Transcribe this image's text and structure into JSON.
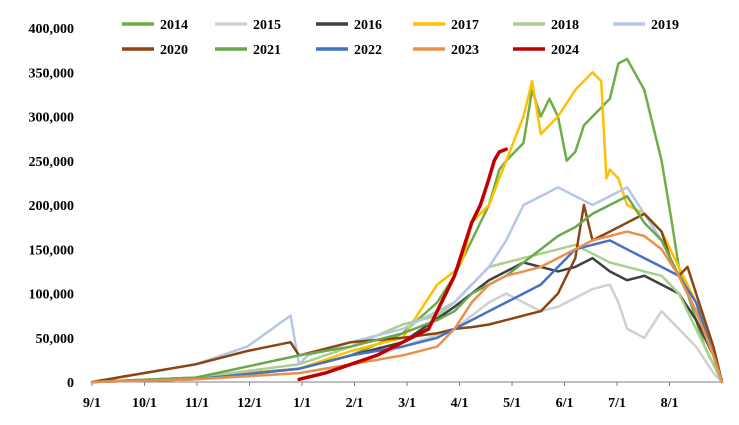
{
  "chart_data": {
    "type": "line",
    "title": "",
    "xlabel": "",
    "ylabel": "",
    "ylim": [
      0,
      400000
    ],
    "grid": false,
    "legend_placement": "top",
    "x_tick_labels": [
      "9/1",
      "10/1",
      "11/1",
      "12/1",
      "1/1",
      "2/1",
      "3/1",
      "4/1",
      "5/1",
      "6/1",
      "7/1",
      "8/1"
    ],
    "y_tick_labels": [
      "0",
      "50,000",
      "100,000",
      "150,000",
      "200,000",
      "250,000",
      "300,000",
      "350,000",
      "400,000"
    ],
    "series": [
      {
        "name": "2014",
        "color": "#70AD47",
        "x": [
          0,
          60,
          120,
          150,
          180,
          200,
          210,
          220,
          230,
          236,
          240,
          250,
          255,
          260,
          265,
          270,
          272,
          275,
          280,
          285,
          290,
          295,
          300,
          305,
          310,
          320,
          330,
          336,
          340,
          345,
          350,
          355,
          360,
          365
        ],
        "y": [
          0,
          3000,
          15000,
          30000,
          55000,
          90000,
          120000,
          160000,
          200000,
          240000,
          250000,
          270000,
          330000,
          300000,
          320000,
          300000,
          280000,
          250000,
          260000,
          290000,
          300000,
          310000,
          320000,
          360000,
          365000,
          330000,
          250000,
          180000,
          130000,
          100000,
          70000,
          40000,
          20000,
          3000
        ]
      },
      {
        "name": "2015",
        "color": "#D0D0D0",
        "x": [
          0,
          60,
          120,
          150,
          180,
          210,
          230,
          240,
          250,
          260,
          270,
          280,
          290,
          300,
          305,
          310,
          320,
          330,
          340,
          350,
          360,
          365
        ],
        "y": [
          0,
          3000,
          10000,
          20000,
          40000,
          60000,
          90000,
          100000,
          90000,
          80000,
          85000,
          95000,
          105000,
          110000,
          90000,
          60000,
          50000,
          80000,
          60000,
          40000,
          10000,
          0
        ]
      },
      {
        "name": "2016",
        "color": "#404040",
        "x": [
          0,
          60,
          120,
          150,
          180,
          210,
          220,
          230,
          240,
          250,
          260,
          270,
          280,
          290,
          300,
          310,
          320,
          330,
          340,
          350,
          360,
          365
        ],
        "y": [
          0,
          5000,
          15000,
          30000,
          45000,
          85000,
          100000,
          115000,
          125000,
          135000,
          130000,
          125000,
          130000,
          140000,
          125000,
          115000,
          120000,
          110000,
          100000,
          70000,
          30000,
          0
        ]
      },
      {
        "name": "2017",
        "color": "#FFC000",
        "x": [
          0,
          60,
          120,
          150,
          180,
          190,
          200,
          210,
          215,
          220,
          225,
          230,
          240,
          250,
          255,
          260,
          270,
          280,
          290,
          295,
          298,
          300,
          305,
          310,
          320,
          330,
          340,
          350,
          360,
          365
        ],
        "y": [
          0,
          5000,
          15000,
          35000,
          50000,
          80000,
          110000,
          125000,
          140000,
          180000,
          190000,
          200000,
          250000,
          300000,
          340000,
          280000,
          300000,
          330000,
          350000,
          340000,
          230000,
          240000,
          230000,
          200000,
          190000,
          170000,
          130000,
          90000,
          40000,
          0
        ]
      },
      {
        "name": "2018",
        "color": "#A9D08E",
        "x": [
          0,
          60,
          120,
          150,
          180,
          200,
          210,
          220,
          230,
          240,
          250,
          260,
          270,
          280,
          290,
          300,
          310,
          320,
          330,
          340,
          350,
          360,
          365
        ],
        "y": [
          0,
          5000,
          20000,
          40000,
          65000,
          75000,
          90000,
          110000,
          130000,
          135000,
          140000,
          145000,
          150000,
          155000,
          145000,
          135000,
          130000,
          125000,
          120000,
          100000,
          60000,
          20000,
          0
        ]
      },
      {
        "name": "2019",
        "color": "#B4C7E7",
        "x": [
          0,
          30,
          60,
          90,
          115,
          120,
          125,
          150,
          180,
          210,
          220,
          230,
          240,
          250,
          260,
          270,
          280,
          290,
          300,
          310,
          320,
          330,
          340,
          350,
          360,
          365
        ],
        "y": [
          0,
          10000,
          20000,
          40000,
          75000,
          20000,
          30000,
          45000,
          60000,
          90000,
          110000,
          130000,
          160000,
          200000,
          210000,
          220000,
          210000,
          200000,
          210000,
          220000,
          190000,
          160000,
          120000,
          80000,
          30000,
          0
        ]
      },
      {
        "name": "2020",
        "color": "#8B4513",
        "x": [
          0,
          30,
          60,
          90,
          115,
          120,
          150,
          180,
          200,
          210,
          220,
          230,
          240,
          250,
          260,
          270,
          280,
          285,
          290,
          300,
          310,
          320,
          330,
          335,
          340,
          345,
          350,
          360,
          365
        ],
        "y": [
          0,
          10000,
          20000,
          35000,
          45000,
          30000,
          45000,
          50000,
          55000,
          60000,
          62000,
          65000,
          70000,
          75000,
          80000,
          100000,
          140000,
          200000,
          160000,
          170000,
          180000,
          190000,
          170000,
          140000,
          120000,
          130000,
          100000,
          40000,
          0
        ]
      },
      {
        "name": "2021",
        "color": "#6AA84F",
        "x": [
          0,
          60,
          120,
          150,
          180,
          200,
          210,
          220,
          230,
          240,
          250,
          260,
          270,
          280,
          290,
          300,
          310,
          320,
          330,
          340,
          350,
          360,
          365
        ],
        "y": [
          0,
          5000,
          30000,
          40000,
          55000,
          70000,
          80000,
          100000,
          110000,
          120000,
          135000,
          150000,
          165000,
          175000,
          190000,
          200000,
          210000,
          180000,
          160000,
          120000,
          80000,
          30000,
          0
        ]
      },
      {
        "name": "2022",
        "color": "#4472C4",
        "x": [
          0,
          60,
          120,
          150,
          180,
          200,
          210,
          220,
          230,
          240,
          250,
          260,
          270,
          280,
          290,
          300,
          310,
          320,
          330,
          340,
          350,
          360,
          365
        ],
        "y": [
          0,
          3000,
          15000,
          30000,
          40000,
          50000,
          60000,
          70000,
          80000,
          90000,
          100000,
          110000,
          130000,
          150000,
          155000,
          160000,
          150000,
          140000,
          130000,
          120000,
          90000,
          30000,
          0
        ]
      },
      {
        "name": "2023",
        "color": "#E9914B",
        "x": [
          0,
          60,
          120,
          150,
          180,
          200,
          210,
          220,
          230,
          240,
          250,
          260,
          270,
          280,
          290,
          300,
          310,
          320,
          330,
          340,
          350,
          360,
          365
        ],
        "y": [
          0,
          3000,
          10000,
          20000,
          30000,
          40000,
          60000,
          90000,
          110000,
          120000,
          125000,
          130000,
          140000,
          150000,
          160000,
          165000,
          170000,
          165000,
          150000,
          120000,
          80000,
          30000,
          0
        ]
      },
      {
        "name": "2024",
        "color": "#C00000",
        "x": [
          120,
          135,
          150,
          165,
          180,
          195,
          200,
          210,
          215,
          220,
          225,
          230,
          233,
          236,
          240
        ],
        "y": [
          3000,
          10000,
          20000,
          30000,
          45000,
          60000,
          80000,
          120000,
          150000,
          180000,
          200000,
          230000,
          250000,
          260000,
          263000
        ]
      }
    ]
  }
}
